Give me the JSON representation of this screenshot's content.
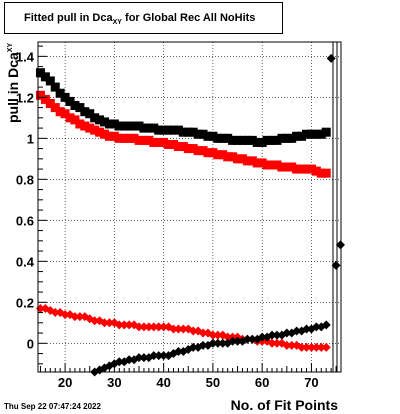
{
  "title": {
    "prefix": "Fitted pull in Dca",
    "subscript": "XY",
    "suffix": " for Global Rec All NoHits"
  },
  "footer": {
    "timestamp": "Thu Sep 22 07:47:24 2022"
  },
  "colors": {
    "series_black": "#000000",
    "series_red": "#ff0000",
    "grid": "#000000",
    "frame": "#000000"
  },
  "chart_data": {
    "type": "scatter",
    "title": "Fitted pull in Dca_XY for Global Rec All NoHits",
    "xlabel": "No. of Fit Points",
    "ylabel": "pull in Dca_XY",
    "xlim": [
      14.5,
      76
    ],
    "ylim": [
      -0.14,
      1.47
    ],
    "x_ticks": [
      20,
      30,
      40,
      50,
      60,
      70
    ],
    "y_ticks": [
      0,
      0.2,
      0.4,
      0.6,
      0.8,
      1,
      1.2,
      1.4
    ],
    "grid": true,
    "legend": "none",
    "series": [
      {
        "marker": "square",
        "color": "#000000",
        "x": [
          15,
          16,
          17,
          18,
          19,
          20,
          21,
          22,
          23,
          24,
          25,
          26,
          27,
          28,
          29,
          30,
          31,
          32,
          33,
          34,
          35,
          36,
          37,
          38,
          39,
          40,
          41,
          42,
          43,
          44,
          45,
          46,
          47,
          48,
          49,
          50,
          51,
          52,
          53,
          54,
          55,
          56,
          57,
          58,
          59,
          60,
          61,
          62,
          63,
          64,
          65,
          66,
          67,
          68,
          69,
          70,
          71,
          72,
          73
        ],
        "y": [
          1.32,
          1.3,
          1.28,
          1.25,
          1.22,
          1.2,
          1.18,
          1.16,
          1.15,
          1.13,
          1.12,
          1.1,
          1.09,
          1.08,
          1.07,
          1.07,
          1.06,
          1.06,
          1.06,
          1.06,
          1.06,
          1.05,
          1.05,
          1.05,
          1.04,
          1.04,
          1.04,
          1.04,
          1.04,
          1.03,
          1.03,
          1.03,
          1.02,
          1.02,
          1.01,
          1.01,
          1.0,
          1.0,
          1.0,
          0.99,
          0.99,
          0.99,
          0.99,
          0.99,
          0.98,
          0.98,
          0.99,
          0.99,
          0.99,
          1.0,
          1.0,
          1.0,
          1.01,
          1.01,
          1.02,
          1.02,
          1.02,
          1.02,
          1.03
        ]
      },
      {
        "marker": "square",
        "color": "#ff0000",
        "x": [
          15,
          16,
          17,
          18,
          19,
          20,
          21,
          22,
          23,
          24,
          25,
          26,
          27,
          28,
          29,
          30,
          31,
          32,
          33,
          34,
          35,
          36,
          37,
          38,
          39,
          40,
          41,
          42,
          43,
          44,
          45,
          46,
          47,
          48,
          49,
          50,
          51,
          52,
          53,
          54,
          55,
          56,
          57,
          58,
          59,
          60,
          61,
          62,
          63,
          64,
          65,
          66,
          67,
          68,
          69,
          70,
          71,
          72,
          73
        ],
        "y": [
          1.21,
          1.19,
          1.17,
          1.15,
          1.13,
          1.12,
          1.1,
          1.09,
          1.07,
          1.06,
          1.05,
          1.04,
          1.03,
          1.02,
          1.01,
          1.01,
          1.0,
          1.0,
          1.0,
          1.0,
          0.99,
          0.99,
          0.99,
          0.98,
          0.98,
          0.98,
          0.97,
          0.97,
          0.96,
          0.96,
          0.95,
          0.95,
          0.94,
          0.94,
          0.93,
          0.93,
          0.92,
          0.92,
          0.91,
          0.91,
          0.9,
          0.9,
          0.89,
          0.89,
          0.88,
          0.88,
          0.87,
          0.87,
          0.87,
          0.86,
          0.86,
          0.86,
          0.85,
          0.85,
          0.85,
          0.85,
          0.84,
          0.83,
          0.83
        ]
      },
      {
        "marker": "diamond",
        "color": "#ff0000",
        "x": [
          15,
          16,
          17,
          18,
          19,
          20,
          21,
          22,
          23,
          24,
          25,
          26,
          27,
          28,
          29,
          30,
          31,
          32,
          33,
          34,
          35,
          36,
          37,
          38,
          39,
          40,
          41,
          42,
          43,
          44,
          45,
          46,
          47,
          48,
          49,
          50,
          51,
          52,
          53,
          54,
          55,
          56,
          57,
          58,
          59,
          60,
          61,
          62,
          63,
          64,
          65,
          66,
          67,
          68,
          69,
          70,
          71,
          72,
          73
        ],
        "y": [
          0.17,
          0.17,
          0.16,
          0.15,
          0.15,
          0.14,
          0.14,
          0.13,
          0.13,
          0.13,
          0.12,
          0.11,
          0.11,
          0.1,
          0.1,
          0.1,
          0.09,
          0.09,
          0.09,
          0.09,
          0.08,
          0.08,
          0.08,
          0.08,
          0.08,
          0.08,
          0.08,
          0.07,
          0.07,
          0.07,
          0.07,
          0.06,
          0.06,
          0.05,
          0.05,
          0.04,
          0.04,
          0.04,
          0.03,
          0.03,
          0.03,
          0.02,
          0.02,
          0.02,
          0.01,
          0.01,
          0.01,
          0.0,
          0.0,
          0.0,
          -0.01,
          -0.01,
          -0.01,
          -0.02,
          -0.02,
          -0.02,
          -0.02,
          -0.02,
          -0.02
        ]
      },
      {
        "marker": "diamond",
        "color": "#000000",
        "x": [
          26,
          27,
          28,
          29,
          30,
          31,
          32,
          33,
          34,
          35,
          36,
          37,
          38,
          39,
          40,
          41,
          42,
          43,
          44,
          45,
          46,
          47,
          48,
          49,
          50,
          51,
          52,
          53,
          54,
          55,
          56,
          57,
          58,
          59,
          60,
          61,
          62,
          63,
          64,
          65,
          66,
          67,
          68,
          69,
          70,
          71,
          72,
          73,
          74,
          75
        ],
        "y": [
          -0.14,
          -0.13,
          -0.12,
          -0.11,
          -0.1,
          -0.09,
          -0.09,
          -0.08,
          -0.08,
          -0.07,
          -0.07,
          -0.07,
          -0.06,
          -0.06,
          -0.06,
          -0.06,
          -0.05,
          -0.04,
          -0.04,
          -0.03,
          -0.02,
          -0.02,
          -0.01,
          -0.01,
          0.0,
          0.0,
          0.0,
          0.0,
          0.01,
          0.01,
          0.01,
          0.02,
          0.02,
          0.02,
          0.03,
          0.03,
          0.04,
          0.04,
          0.04,
          0.05,
          0.05,
          0.06,
          0.06,
          0.07,
          0.07,
          0.08,
          0.08,
          0.09,
          1.39,
          0.38
        ]
      },
      {
        "marker": "diamond",
        "color": "#000000",
        "x": [
          75.9
        ],
        "y": [
          0.48
        ]
      }
    ]
  }
}
